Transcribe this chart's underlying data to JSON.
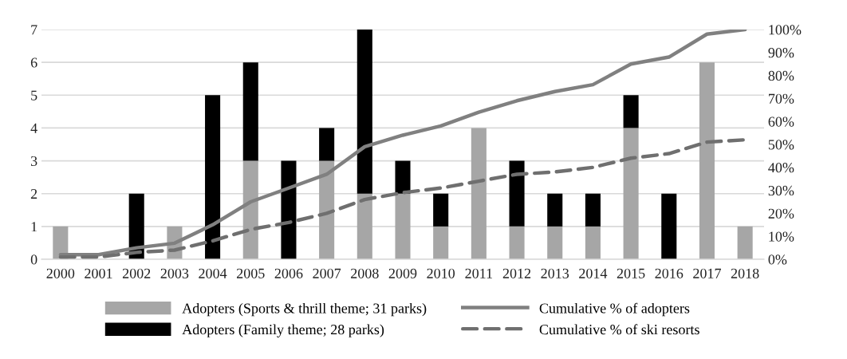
{
  "chart_data": {
    "type": "bar",
    "stacked": true,
    "categories": [
      "2000",
      "2001",
      "2002",
      "2003",
      "2004",
      "2005",
      "2006",
      "2007",
      "2008",
      "2009",
      "2010",
      "2011",
      "2012",
      "2013",
      "2014",
      "2015",
      "2016",
      "2017",
      "2018"
    ],
    "series": [
      {
        "name": "Adopters (Sports & thrill theme; 31 parks)",
        "color": "#a6a6a6",
        "values": [
          1,
          0,
          0,
          1,
          0,
          3,
          0,
          3,
          2,
          2,
          1,
          4,
          1,
          1,
          1,
          4,
          0,
          6,
          1
        ]
      },
      {
        "name": "Adopters (Family theme; 28 parks)",
        "color": "#000000",
        "values": [
          0,
          0,
          2,
          0,
          5,
          3,
          3,
          1,
          5,
          1,
          1,
          0,
          2,
          1,
          1,
          1,
          2,
          0,
          0
        ]
      },
      {
        "name": "Cumulative % of adopters",
        "type": "line",
        "axis": "y2",
        "color": "#808080",
        "line_style": "solid",
        "values": [
          2,
          2,
          5,
          7,
          15,
          25,
          31,
          37,
          49,
          54,
          58,
          64,
          69,
          73,
          76,
          85,
          88,
          98,
          100
        ]
      },
      {
        "name": "Cumulative % of ski resorts",
        "type": "line",
        "axis": "y2",
        "color": "#6f6f6f",
        "line_style": "dashed",
        "values": [
          1,
          1,
          3,
          4,
          8,
          13,
          16,
          20,
          26,
          29,
          31,
          34,
          37,
          38,
          40,
          44,
          46,
          51,
          52
        ]
      }
    ],
    "ylim": [
      0,
      7
    ],
    "yticks": [
      0,
      1,
      2,
      3,
      4,
      5,
      6,
      7
    ],
    "y2lim": [
      0,
      100
    ],
    "y2ticks": [
      {
        "value": 0,
        "label": "0%"
      },
      {
        "value": 10,
        "label": "10%"
      },
      {
        "value": 20,
        "label": "20%"
      },
      {
        "value": 30,
        "label": "30%"
      },
      {
        "value": 40,
        "label": "40%"
      },
      {
        "value": 50,
        "label": "50%"
      },
      {
        "value": 60,
        "label": "60%"
      },
      {
        "value": 70,
        "label": "70%"
      },
      {
        "value": 80,
        "label": "80%"
      },
      {
        "value": 90,
        "label": "90%"
      },
      {
        "value": 100,
        "label": "100%"
      }
    ],
    "grid": "y",
    "legend": "bottom",
    "marker": "none"
  }
}
